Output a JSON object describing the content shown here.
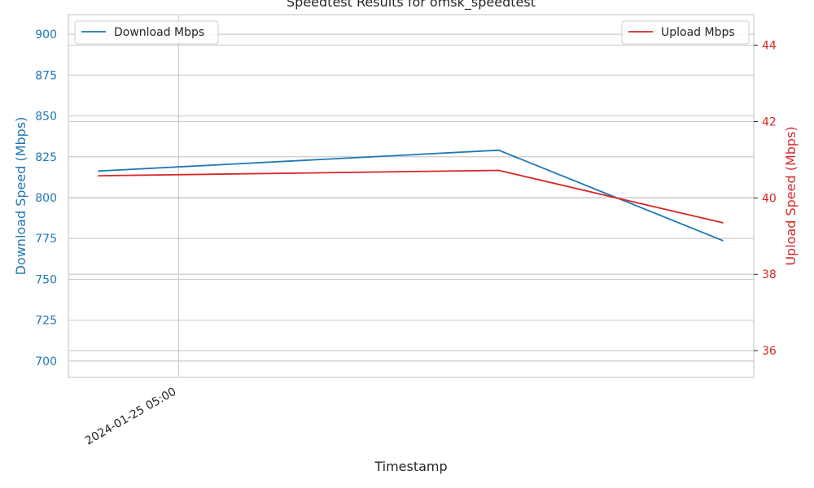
{
  "chart_data": {
    "type": "line",
    "title": "Speedtest Results for omsk_speedtest",
    "xlabel": "Timestamp",
    "ylabel_left": "Download Speed (Mbps)",
    "ylabel_right": "Upload Speed (Mbps)",
    "x_ticks": [
      "2024-01-25 05:00"
    ],
    "x": [
      "2024-01-25 04:35",
      "2024-01-25 06:40",
      "2024-01-25 07:50"
    ],
    "ylim_left": [
      690,
      912
    ],
    "ylim_right": [
      35.3,
      44.8
    ],
    "yticks_left": [
      700,
      725,
      750,
      775,
      800,
      825,
      850,
      875,
      900
    ],
    "yticks_right": [
      36,
      38,
      40,
      42,
      44
    ],
    "grid": true,
    "colors": {
      "download": "#1f77b4",
      "upload": "#d62728",
      "tick_text": "#262626",
      "grid": "#cccccc"
    },
    "series": [
      {
        "name": "Download Mbps",
        "axis": "left",
        "values": [
          816.3,
          829.0,
          773.7
        ]
      },
      {
        "name": "Upload Mbps",
        "axis": "right",
        "values": [
          40.58,
          40.72,
          39.35
        ]
      }
    ],
    "legend_left": "Download Mbps",
    "legend_right": "Upload Mbps"
  }
}
